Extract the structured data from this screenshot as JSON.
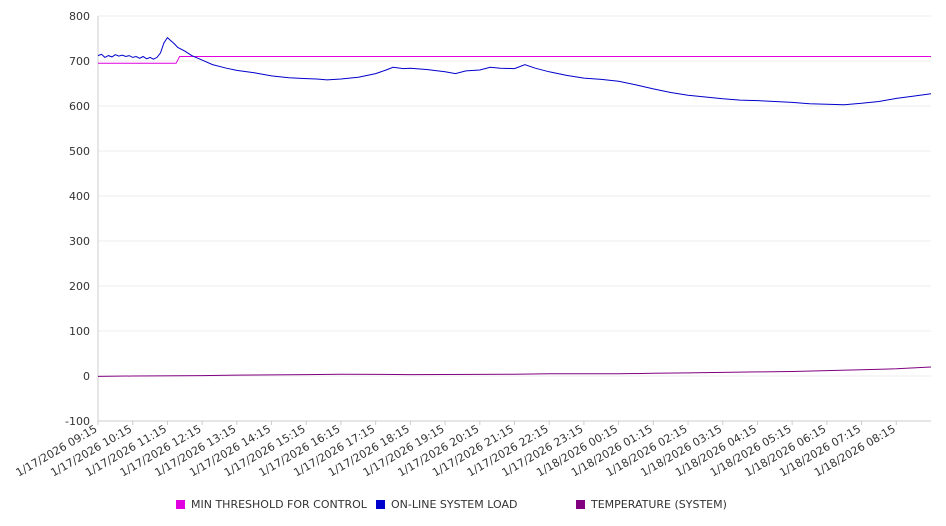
{
  "chart_data": {
    "type": "line",
    "title": "",
    "xlabel": "",
    "ylabel": "",
    "ylim": [
      -100,
      800
    ],
    "yticks": [
      -100,
      0,
      100,
      200,
      300,
      400,
      500,
      600,
      700,
      800
    ],
    "grid": true,
    "legend_position": "bottom",
    "x_tick_labels": [
      "1/17/2026 09:15",
      "1/17/2026 10:15",
      "1/17/2026 11:15",
      "1/17/2026 12:15",
      "1/17/2026 13:15",
      "1/17/2026 14:15",
      "1/17/2026 15:15",
      "1/17/2026 16:15",
      "1/17/2026 17:15",
      "1/17/2026 18:15",
      "1/17/2026 19:15",
      "1/17/2026 20:15",
      "1/17/2026 21:15",
      "1/17/2026 22:15",
      "1/17/2026 23:15",
      "1/18/2026 00:15",
      "1/18/2026 01:15",
      "1/18/2026 02:15",
      "1/18/2026 03:15",
      "1/18/2026 04:15",
      "1/18/2026 05:15",
      "1/18/2026 06:15",
      "1/18/2026 07:15",
      "1/18/2026 08:15"
    ],
    "x_range_hours": [
      0,
      24
    ],
    "series": [
      {
        "name": "MIN THRESHOLD FOR CONTROL",
        "color": "#e000e0",
        "points": [
          [
            0,
            695
          ],
          [
            2.25,
            695
          ],
          [
            2.35,
            710
          ],
          [
            24,
            710
          ]
        ]
      },
      {
        "name": "ON-LINE SYSTEM LOAD",
        "color": "#0000cc",
        "points": [
          [
            0,
            712
          ],
          [
            0.1,
            715
          ],
          [
            0.2,
            708
          ],
          [
            0.3,
            712
          ],
          [
            0.4,
            709
          ],
          [
            0.5,
            714
          ],
          [
            0.6,
            711
          ],
          [
            0.7,
            713
          ],
          [
            0.8,
            710
          ],
          [
            0.9,
            712
          ],
          [
            1.0,
            708
          ],
          [
            1.1,
            710
          ],
          [
            1.2,
            706
          ],
          [
            1.3,
            710
          ],
          [
            1.4,
            705
          ],
          [
            1.5,
            708
          ],
          [
            1.6,
            704
          ],
          [
            1.7,
            708
          ],
          [
            1.8,
            718
          ],
          [
            1.9,
            740
          ],
          [
            2.0,
            752
          ],
          [
            2.1,
            745
          ],
          [
            2.2,
            738
          ],
          [
            2.3,
            730
          ],
          [
            2.5,
            722
          ],
          [
            2.7,
            712
          ],
          [
            3.0,
            702
          ],
          [
            3.3,
            692
          ],
          [
            3.7,
            684
          ],
          [
            4.0,
            679
          ],
          [
            4.5,
            674
          ],
          [
            5.0,
            667
          ],
          [
            5.5,
            663
          ],
          [
            6.0,
            661
          ],
          [
            6.3,
            660
          ],
          [
            6.6,
            658
          ],
          [
            7.0,
            660
          ],
          [
            7.5,
            664
          ],
          [
            8.0,
            672
          ],
          [
            8.3,
            680
          ],
          [
            8.5,
            686
          ],
          [
            8.8,
            683
          ],
          [
            9.0,
            684
          ],
          [
            9.5,
            681
          ],
          [
            10.0,
            676
          ],
          [
            10.3,
            672
          ],
          [
            10.6,
            678
          ],
          [
            11.0,
            680
          ],
          [
            11.3,
            686
          ],
          [
            11.6,
            684
          ],
          [
            12.0,
            683
          ],
          [
            12.3,
            692
          ],
          [
            12.6,
            684
          ],
          [
            13.0,
            676
          ],
          [
            13.5,
            668
          ],
          [
            14.0,
            662
          ],
          [
            14.5,
            659
          ],
          [
            15.0,
            655
          ],
          [
            15.5,
            647
          ],
          [
            16.0,
            638
          ],
          [
            16.5,
            630
          ],
          [
            17.0,
            624
          ],
          [
            17.5,
            620
          ],
          [
            18.0,
            616
          ],
          [
            18.5,
            613
          ],
          [
            19.0,
            612
          ],
          [
            19.5,
            610
          ],
          [
            20.0,
            608
          ],
          [
            20.5,
            605
          ],
          [
            21.0,
            604
          ],
          [
            21.5,
            603
          ],
          [
            22.0,
            606
          ],
          [
            22.5,
            610
          ],
          [
            23.0,
            617
          ],
          [
            23.5,
            622
          ],
          [
            24.0,
            627
          ]
        ]
      },
      {
        "name": "TEMPERATURE (SYSTEM)",
        "color": "#800080",
        "points": [
          [
            0,
            -1
          ],
          [
            1,
            0
          ],
          [
            3,
            1
          ],
          [
            4,
            2
          ],
          [
            6,
            3
          ],
          [
            7,
            4
          ],
          [
            9,
            3
          ],
          [
            12,
            4
          ],
          [
            13,
            5
          ],
          [
            15,
            5
          ],
          [
            16,
            6
          ],
          [
            17,
            7
          ],
          [
            18,
            8
          ],
          [
            19,
            9
          ],
          [
            20,
            10
          ],
          [
            21,
            12
          ],
          [
            22,
            14
          ],
          [
            23,
            16
          ],
          [
            24,
            20
          ]
        ]
      }
    ]
  }
}
